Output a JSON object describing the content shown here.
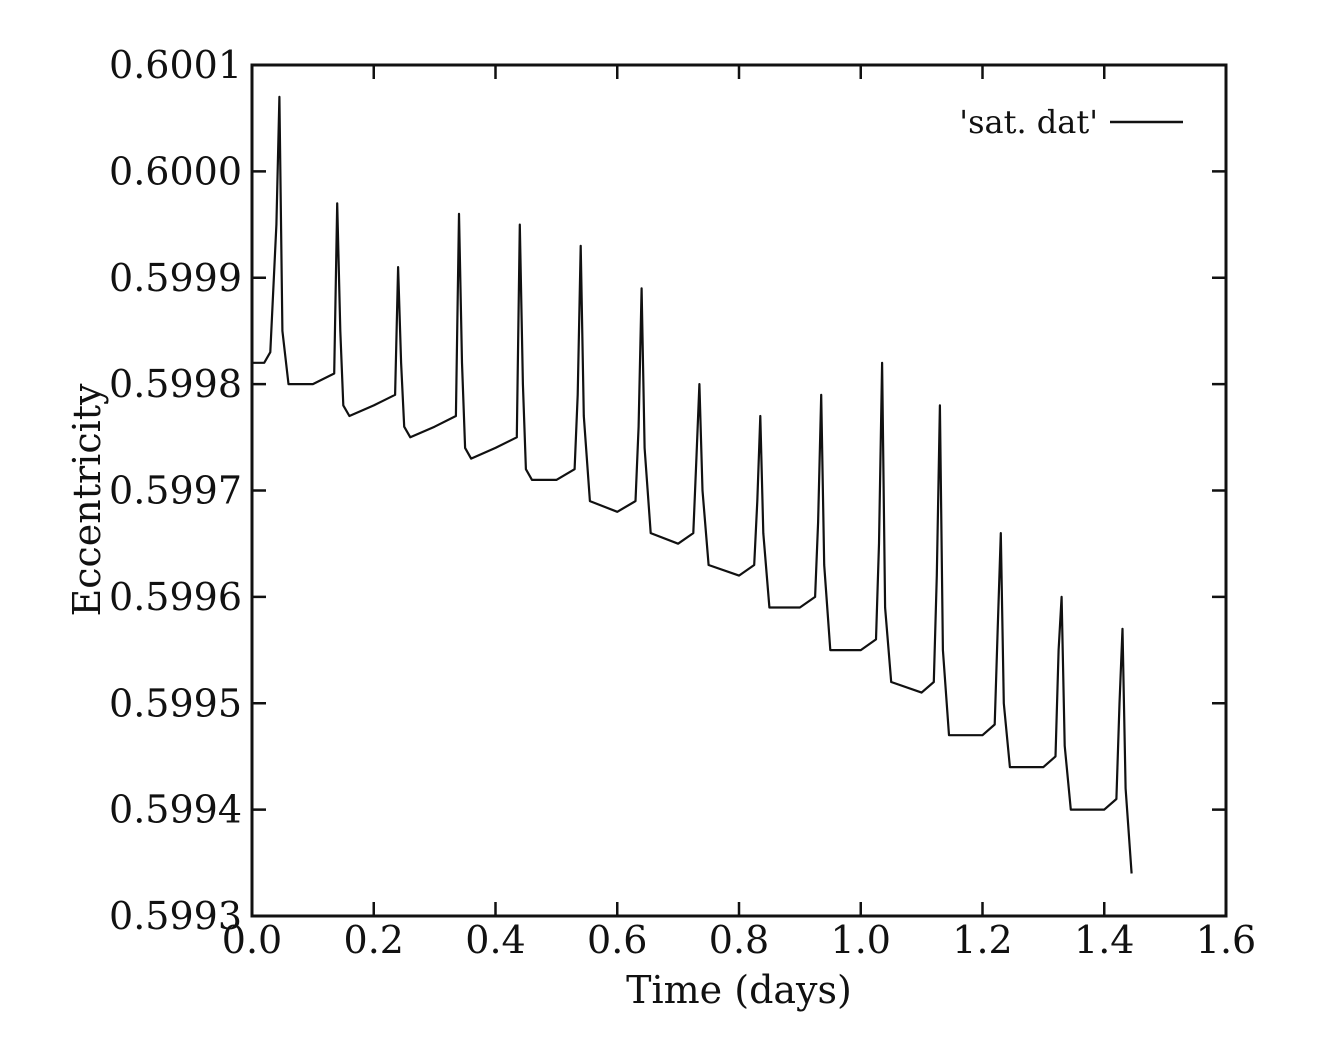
{
  "chart_data": {
    "type": "line",
    "title": "",
    "xlabel": "Time (days)",
    "ylabel": "Eccentricity",
    "xlim": [
      0.0,
      1.6
    ],
    "ylim": [
      0.5993,
      0.6001
    ],
    "xticks": [
      "0.0",
      "0.2",
      "0.4",
      "0.6",
      "0.8",
      "1.0",
      "1.2",
      "1.4",
      "1.6"
    ],
    "yticks": [
      "0.5993",
      "0.5994",
      "0.5995",
      "0.5996",
      "0.5997",
      "0.5998",
      "0.5999",
      "0.6000",
      "0.6001"
    ],
    "grid": false,
    "legend_position": "top-right",
    "line_color": "#111111",
    "series": [
      {
        "name": "'sat. dat'",
        "x": [
          0.0,
          0.02,
          0.03,
          0.04,
          0.045,
          0.05,
          0.06,
          0.07,
          0.1,
          0.135,
          0.14,
          0.145,
          0.15,
          0.16,
          0.2,
          0.235,
          0.24,
          0.245,
          0.25,
          0.26,
          0.3,
          0.335,
          0.34,
          0.345,
          0.35,
          0.36,
          0.4,
          0.435,
          0.44,
          0.445,
          0.45,
          0.46,
          0.5,
          0.53,
          0.535,
          0.54,
          0.545,
          0.555,
          0.6,
          0.63,
          0.635,
          0.64,
          0.645,
          0.655,
          0.7,
          0.725,
          0.73,
          0.735,
          0.74,
          0.75,
          0.8,
          0.825,
          0.83,
          0.835,
          0.84,
          0.85,
          0.9,
          0.925,
          0.93,
          0.935,
          0.94,
          0.95,
          1.0,
          1.025,
          1.03,
          1.035,
          1.04,
          1.05,
          1.1,
          1.12,
          1.125,
          1.13,
          1.135,
          1.145,
          1.2,
          1.22,
          1.225,
          1.23,
          1.235,
          1.245,
          1.3,
          1.32,
          1.325,
          1.33,
          1.335,
          1.345,
          1.4,
          1.42,
          1.425,
          1.43,
          1.435,
          1.445
        ],
        "values": [
          0.59982,
          0.59982,
          0.59983,
          0.59995,
          0.60007,
          0.59985,
          0.5998,
          0.5998,
          0.5998,
          0.59981,
          0.59997,
          0.59985,
          0.59978,
          0.59977,
          0.59978,
          0.59979,
          0.59991,
          0.59982,
          0.59976,
          0.59975,
          0.59976,
          0.59977,
          0.59996,
          0.59982,
          0.59974,
          0.59973,
          0.59974,
          0.59975,
          0.59995,
          0.5998,
          0.59972,
          0.59971,
          0.59971,
          0.59972,
          0.59979,
          0.59993,
          0.59977,
          0.59969,
          0.59968,
          0.59969,
          0.59976,
          0.59989,
          0.59974,
          0.59966,
          0.59965,
          0.59966,
          0.59973,
          0.5998,
          0.5997,
          0.59963,
          0.59962,
          0.59963,
          0.59969,
          0.59977,
          0.59966,
          0.59959,
          0.59959,
          0.5996,
          0.59967,
          0.59979,
          0.59963,
          0.59955,
          0.59955,
          0.59956,
          0.59965,
          0.59982,
          0.59959,
          0.59952,
          0.59951,
          0.59952,
          0.59962,
          0.59978,
          0.59955,
          0.59947,
          0.59947,
          0.59948,
          0.59957,
          0.59966,
          0.5995,
          0.59944,
          0.59944,
          0.59945,
          0.59955,
          0.5996,
          0.59946,
          0.5994,
          0.5994,
          0.59941,
          0.5995,
          0.59957,
          0.59942,
          0.59934
        ]
      }
    ]
  }
}
